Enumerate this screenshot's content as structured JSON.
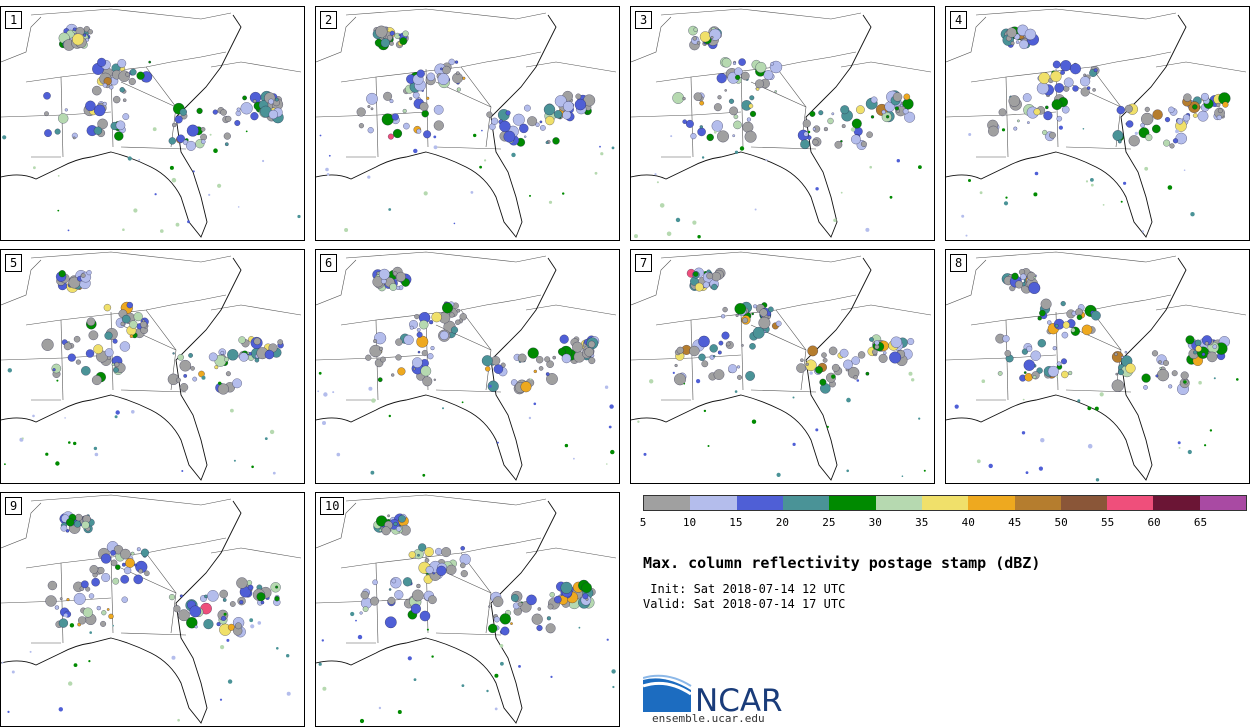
{
  "panels": [
    {
      "label": "1",
      "seed": 1
    },
    {
      "label": "2",
      "seed": 2
    },
    {
      "label": "3",
      "seed": 3
    },
    {
      "label": "4",
      "seed": 4
    },
    {
      "label": "5",
      "seed": 5
    },
    {
      "label": "6",
      "seed": 6
    },
    {
      "label": "7",
      "seed": 7
    },
    {
      "label": "8",
      "seed": 8
    },
    {
      "label": "9",
      "seed": 9
    },
    {
      "label": "10",
      "seed": 10
    }
  ],
  "colorbar": {
    "colors": [
      "#a0a0a0",
      "#b4bdec",
      "#4f5fd6",
      "#4a9397",
      "#008a00",
      "#b6d9b0",
      "#f0e06a",
      "#eea91f",
      "#b57d2e",
      "#8a5638",
      "#ef4f7b",
      "#6b1535",
      "#a94aa3"
    ],
    "ticks": [
      "5",
      "10",
      "15",
      "20",
      "25",
      "30",
      "35",
      "40",
      "45",
      "50",
      "55",
      "60",
      "65"
    ]
  },
  "title": "Max. column reflectivity postage stamp (dBZ)",
  "init": " Init: Sat 2018-07-14 12 UTC",
  "valid": "Valid: Sat 2018-07-14 17 UTC",
  "logo": {
    "text": "NCAR",
    "site": "ensemble.ucar.edu",
    "color": "#1a3c7a"
  }
}
